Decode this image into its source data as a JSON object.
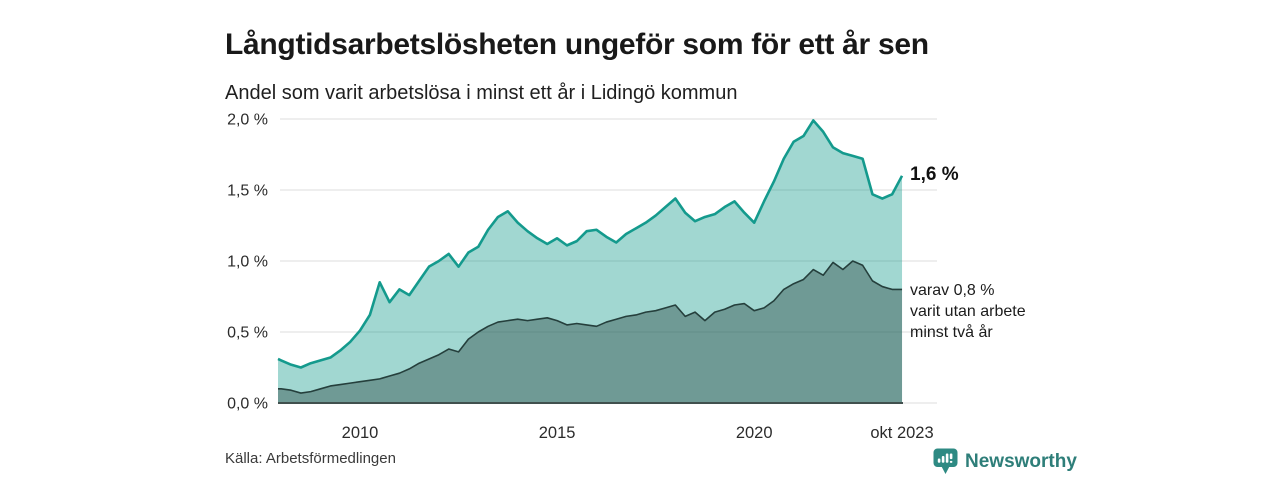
{
  "header": {
    "title": "Långtidsarbetslösheten ungeför som för ett år sen",
    "subtitle": "Andel som varit arbetslösa i minst ett år i Lidingö kommun"
  },
  "annotations": {
    "total_label": "1,6 %",
    "subset_lines": [
      "varav 0,8 %",
      "varit utan arbete",
      "minst två år"
    ]
  },
  "footer": {
    "source": "Källa: Arbetsförmedlingen",
    "brand": "Newsworthy"
  },
  "colors": {
    "accent_teal": "#149a8d",
    "dark_teal": "#253f3c",
    "brand_teal": "#2e7e79",
    "gridline": "#dcdcdc",
    "axis": "#41504e"
  },
  "chart_data": {
    "type": "area",
    "title": "Långtidsarbetslösheten ungeför som för ett år sen",
    "subtitle": "Andel som varit arbetslösa i minst ett år i Lidingö kommun",
    "unit": "%",
    "grid": true,
    "xlim": [
      2007.92,
      2023.75
    ],
    "ylim": [
      0,
      2.0
    ],
    "y_ticks": [
      {
        "v": 0.0,
        "label": "0,0 %"
      },
      {
        "v": 0.5,
        "label": "0,5 %"
      },
      {
        "v": 1.0,
        "label": "1,0 %"
      },
      {
        "v": 1.5,
        "label": "1,5 %"
      },
      {
        "v": 2.0,
        "label": "2,0 %"
      }
    ],
    "x_ticks": [
      {
        "v": 2010,
        "label": "2010"
      },
      {
        "v": 2015,
        "label": "2015"
      },
      {
        "v": 2020,
        "label": "2020"
      },
      {
        "v": 2023.75,
        "label": "okt 2023"
      }
    ],
    "x": [
      2007.92,
      2008,
      2008.25,
      2008.5,
      2008.75,
      2009,
      2009.25,
      2009.5,
      2009.75,
      2010,
      2010.25,
      2010.5,
      2010.75,
      2011,
      2011.25,
      2011.5,
      2011.75,
      2012,
      2012.25,
      2012.5,
      2012.75,
      2013,
      2013.25,
      2013.5,
      2013.75,
      2014,
      2014.25,
      2014.5,
      2014.75,
      2015,
      2015.25,
      2015.5,
      2015.75,
      2016,
      2016.25,
      2016.5,
      2016.75,
      2017,
      2017.25,
      2017.5,
      2017.75,
      2018,
      2018.25,
      2018.5,
      2018.75,
      2019,
      2019.25,
      2019.5,
      2019.75,
      2020,
      2020.25,
      2020.5,
      2020.75,
      2021,
      2021.25,
      2021.5,
      2021.75,
      2022,
      2022.25,
      2022.5,
      2022.75,
      2023,
      2023.25,
      2023.5,
      2023.75
    ],
    "series": [
      {
        "name": "Andel arbetslösa minst ett år",
        "end_value": "1,6 %",
        "line_color": "#149a8d",
        "fill_color": "rgba(20,154,140,0.40)",
        "line_width": 2.6,
        "values": [
          0.31,
          0.3,
          0.27,
          0.25,
          0.28,
          0.3,
          0.32,
          0.37,
          0.43,
          0.51,
          0.62,
          0.85,
          0.71,
          0.8,
          0.76,
          0.86,
          0.96,
          1.0,
          1.05,
          0.96,
          1.06,
          1.1,
          1.22,
          1.31,
          1.35,
          1.27,
          1.21,
          1.16,
          1.12,
          1.16,
          1.11,
          1.14,
          1.21,
          1.22,
          1.17,
          1.13,
          1.19,
          1.23,
          1.27,
          1.32,
          1.38,
          1.44,
          1.34,
          1.28,
          1.31,
          1.33,
          1.38,
          1.42,
          1.34,
          1.27,
          1.42,
          1.56,
          1.72,
          1.84,
          1.88,
          1.99,
          1.91,
          1.8,
          1.76,
          1.74,
          1.72,
          1.47,
          1.44,
          1.47,
          1.6
        ]
      },
      {
        "name": "varav utan arbete minst två år",
        "end_value": "0,8 %",
        "line_color": "#253f3c",
        "fill_color": "rgba(37,63,60,0.40)",
        "line_width": 1.6,
        "values": [
          0.1,
          0.1,
          0.09,
          0.07,
          0.08,
          0.1,
          0.12,
          0.13,
          0.14,
          0.15,
          0.16,
          0.17,
          0.19,
          0.21,
          0.24,
          0.28,
          0.31,
          0.34,
          0.38,
          0.36,
          0.45,
          0.5,
          0.54,
          0.57,
          0.58,
          0.59,
          0.58,
          0.59,
          0.6,
          0.58,
          0.55,
          0.56,
          0.55,
          0.54,
          0.57,
          0.59,
          0.61,
          0.62,
          0.64,
          0.65,
          0.67,
          0.69,
          0.61,
          0.64,
          0.58,
          0.64,
          0.66,
          0.69,
          0.7,
          0.65,
          0.67,
          0.72,
          0.8,
          0.84,
          0.87,
          0.94,
          0.9,
          0.99,
          0.94,
          1.0,
          0.97,
          0.86,
          0.82,
          0.8,
          0.8
        ]
      }
    ]
  }
}
